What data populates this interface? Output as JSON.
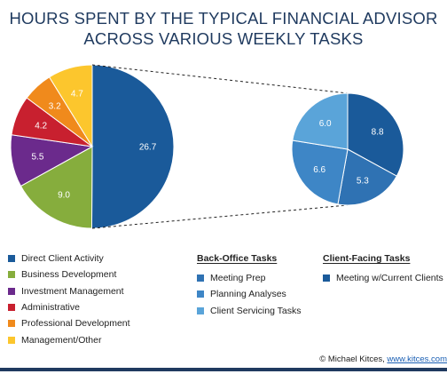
{
  "chart_data": [
    {
      "type": "pie",
      "title": "HOURS SPENT BY THE TYPICAL FINANCIAL ADVISOR\nACROSS VARIOUS WEEKLY TASKS",
      "title_lines": [
        "HOURS SPENT BY THE TYPICAL FINANCIAL ADVISOR",
        "ACROSS VARIOUS WEEKLY TASKS"
      ],
      "categories": [
        "Direct Client Activity",
        "Business Development",
        "Investment Management",
        "Administrative",
        "Professional Development",
        "Management/Other"
      ],
      "values": [
        26.7,
        9.0,
        5.5,
        4.2,
        3.2,
        4.7
      ],
      "labels": [
        "26.7",
        "9.0",
        "5.5",
        "4.2",
        "3.2",
        "4.7"
      ],
      "colors": [
        "#1a5a9a",
        "#86ad3d",
        "#6b2a8c",
        "#c8202f",
        "#f08a1c",
        "#fcc62d"
      ]
    },
    {
      "type": "pie",
      "categories": [
        "Meeting w/Current Clients",
        "Meeting Prep",
        "Planning Analyses",
        "Client Servicing Tasks"
      ],
      "values": [
        8.8,
        5.3,
        6.6,
        6.0
      ],
      "labels": [
        "8.8",
        "5.3",
        "6.6",
        "6.0"
      ],
      "colors": [
        "#1a5a9a",
        "#2f72b3",
        "#3e86c6",
        "#5aa4d9"
      ]
    }
  ],
  "legend_main": [
    {
      "label": "Direct Client Activity",
      "color": "#1a5a9a"
    },
    {
      "label": "Business Development",
      "color": "#86ad3d"
    },
    {
      "label": "Investment Management",
      "color": "#6b2a8c"
    },
    {
      "label": "Administrative",
      "color": "#c8202f"
    },
    {
      "label": "Professional Development",
      "color": "#f08a1c"
    },
    {
      "label": "Management/Other",
      "color": "#fcc62d"
    }
  ],
  "legend_backoffice": {
    "title": "Back-Office Tasks",
    "items": [
      {
        "label": "Meeting Prep",
        "color": "#2f72b3"
      },
      {
        "label": "Planning Analyses",
        "color": "#3e86c6"
      },
      {
        "label": "Client Servicing Tasks",
        "color": "#5aa4d9"
      }
    ]
  },
  "legend_clientfacing": {
    "title": "Client-Facing Tasks",
    "items": [
      {
        "label": "Meeting w/Current Clients",
        "color": "#1a5a9a"
      }
    ]
  },
  "credit": {
    "prefix": "© Michael Kitces,",
    "link": "www.kitces.com"
  },
  "colors": {
    "title": "#1f3a5f",
    "rule": "#1f3a5f",
    "link": "#1a5fb4"
  }
}
